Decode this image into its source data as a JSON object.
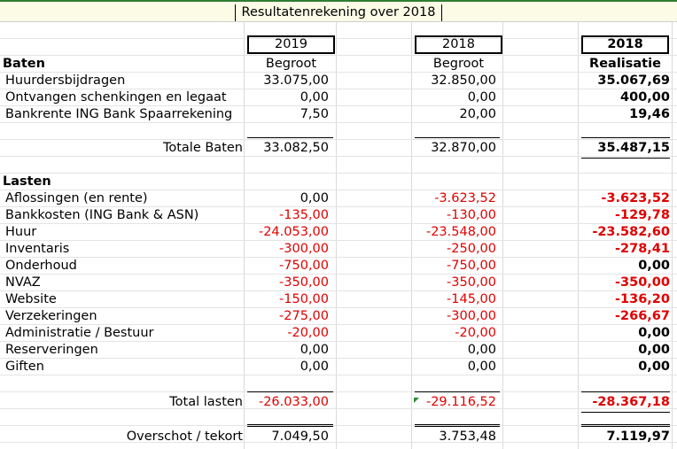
{
  "title": "Resultatenrekening over 2018",
  "headers": {
    "col1_year": "2019",
    "col1_sub": "Begroot",
    "col2_year": "2018",
    "col2_sub": "Begroot",
    "col3_year": "2018",
    "col3_sub": "Realisatie"
  },
  "baten": {
    "heading": "Baten",
    "rows": [
      {
        "label": "Huurdersbijdragen",
        "v1": "33.075,00",
        "v2": "32.850,00",
        "v3": "35.067,69"
      },
      {
        "label": "Ontvangen schenkingen en legaat",
        "v1": "0,00",
        "v2": "0,00",
        "v3": "400,00"
      },
      {
        "label": "Bankrente ING Bank Spaarrekening",
        "v1": "7,50",
        "v2": "20,00",
        "v3": "19,46"
      }
    ],
    "total": {
      "label": "Totale Baten",
      "v1": "33.082,50",
      "v2": "32.870,00",
      "v3": "35.487,15"
    }
  },
  "lasten": {
    "heading": "Lasten",
    "rows": [
      {
        "label": "Aflossingen (en rente)",
        "v1": "0,00",
        "v2": "-3.623,52",
        "v3": "-3.623,52"
      },
      {
        "label": "Bankkosten (ING Bank & ASN)",
        "v1": "-135,00",
        "v2": "-130,00",
        "v3": "-129,78"
      },
      {
        "label": "Huur",
        "v1": "-24.053,00",
        "v2": "-23.548,00",
        "v3": "-23.582,60"
      },
      {
        "label": "Inventaris",
        "v1": "-300,00",
        "v2": "-250,00",
        "v3": "-278,41"
      },
      {
        "label": "Onderhoud",
        "v1": "-750,00",
        "v2": "-750,00",
        "v3": "0,00"
      },
      {
        "label": "NVAZ",
        "v1": "-350,00",
        "v2": "-350,00",
        "v3": "-350,00"
      },
      {
        "label": "Website",
        "v1": "-150,00",
        "v2": "-145,00",
        "v3": "-136,20"
      },
      {
        "label": "Verzekeringen",
        "v1": "-275,00",
        "v2": "-300,00",
        "v3": "-266,67"
      },
      {
        "label": "Administratie / Bestuur",
        "v1": "-20,00",
        "v2": "-20,00",
        "v3": "0,00"
      },
      {
        "label": "Reserveringen",
        "v1": "0,00",
        "v2": "0,00",
        "v3": "0,00"
      },
      {
        "label": "Giften",
        "v1": "0,00",
        "v2": "0,00",
        "v3": "0,00"
      }
    ],
    "total": {
      "label": "Total lasten",
      "v1": "-26.033,00",
      "v2": "-29.116,52",
      "v3": "-28.367,18"
    }
  },
  "result": {
    "label": "Overschot / tekort",
    "v1": "7.049,50",
    "v2": "3.753,48",
    "v3": "7.119,97"
  },
  "colors": {
    "negative": "#e00000",
    "title_bg": "#fbfbe6",
    "accent_green": "#2f7d32"
  }
}
